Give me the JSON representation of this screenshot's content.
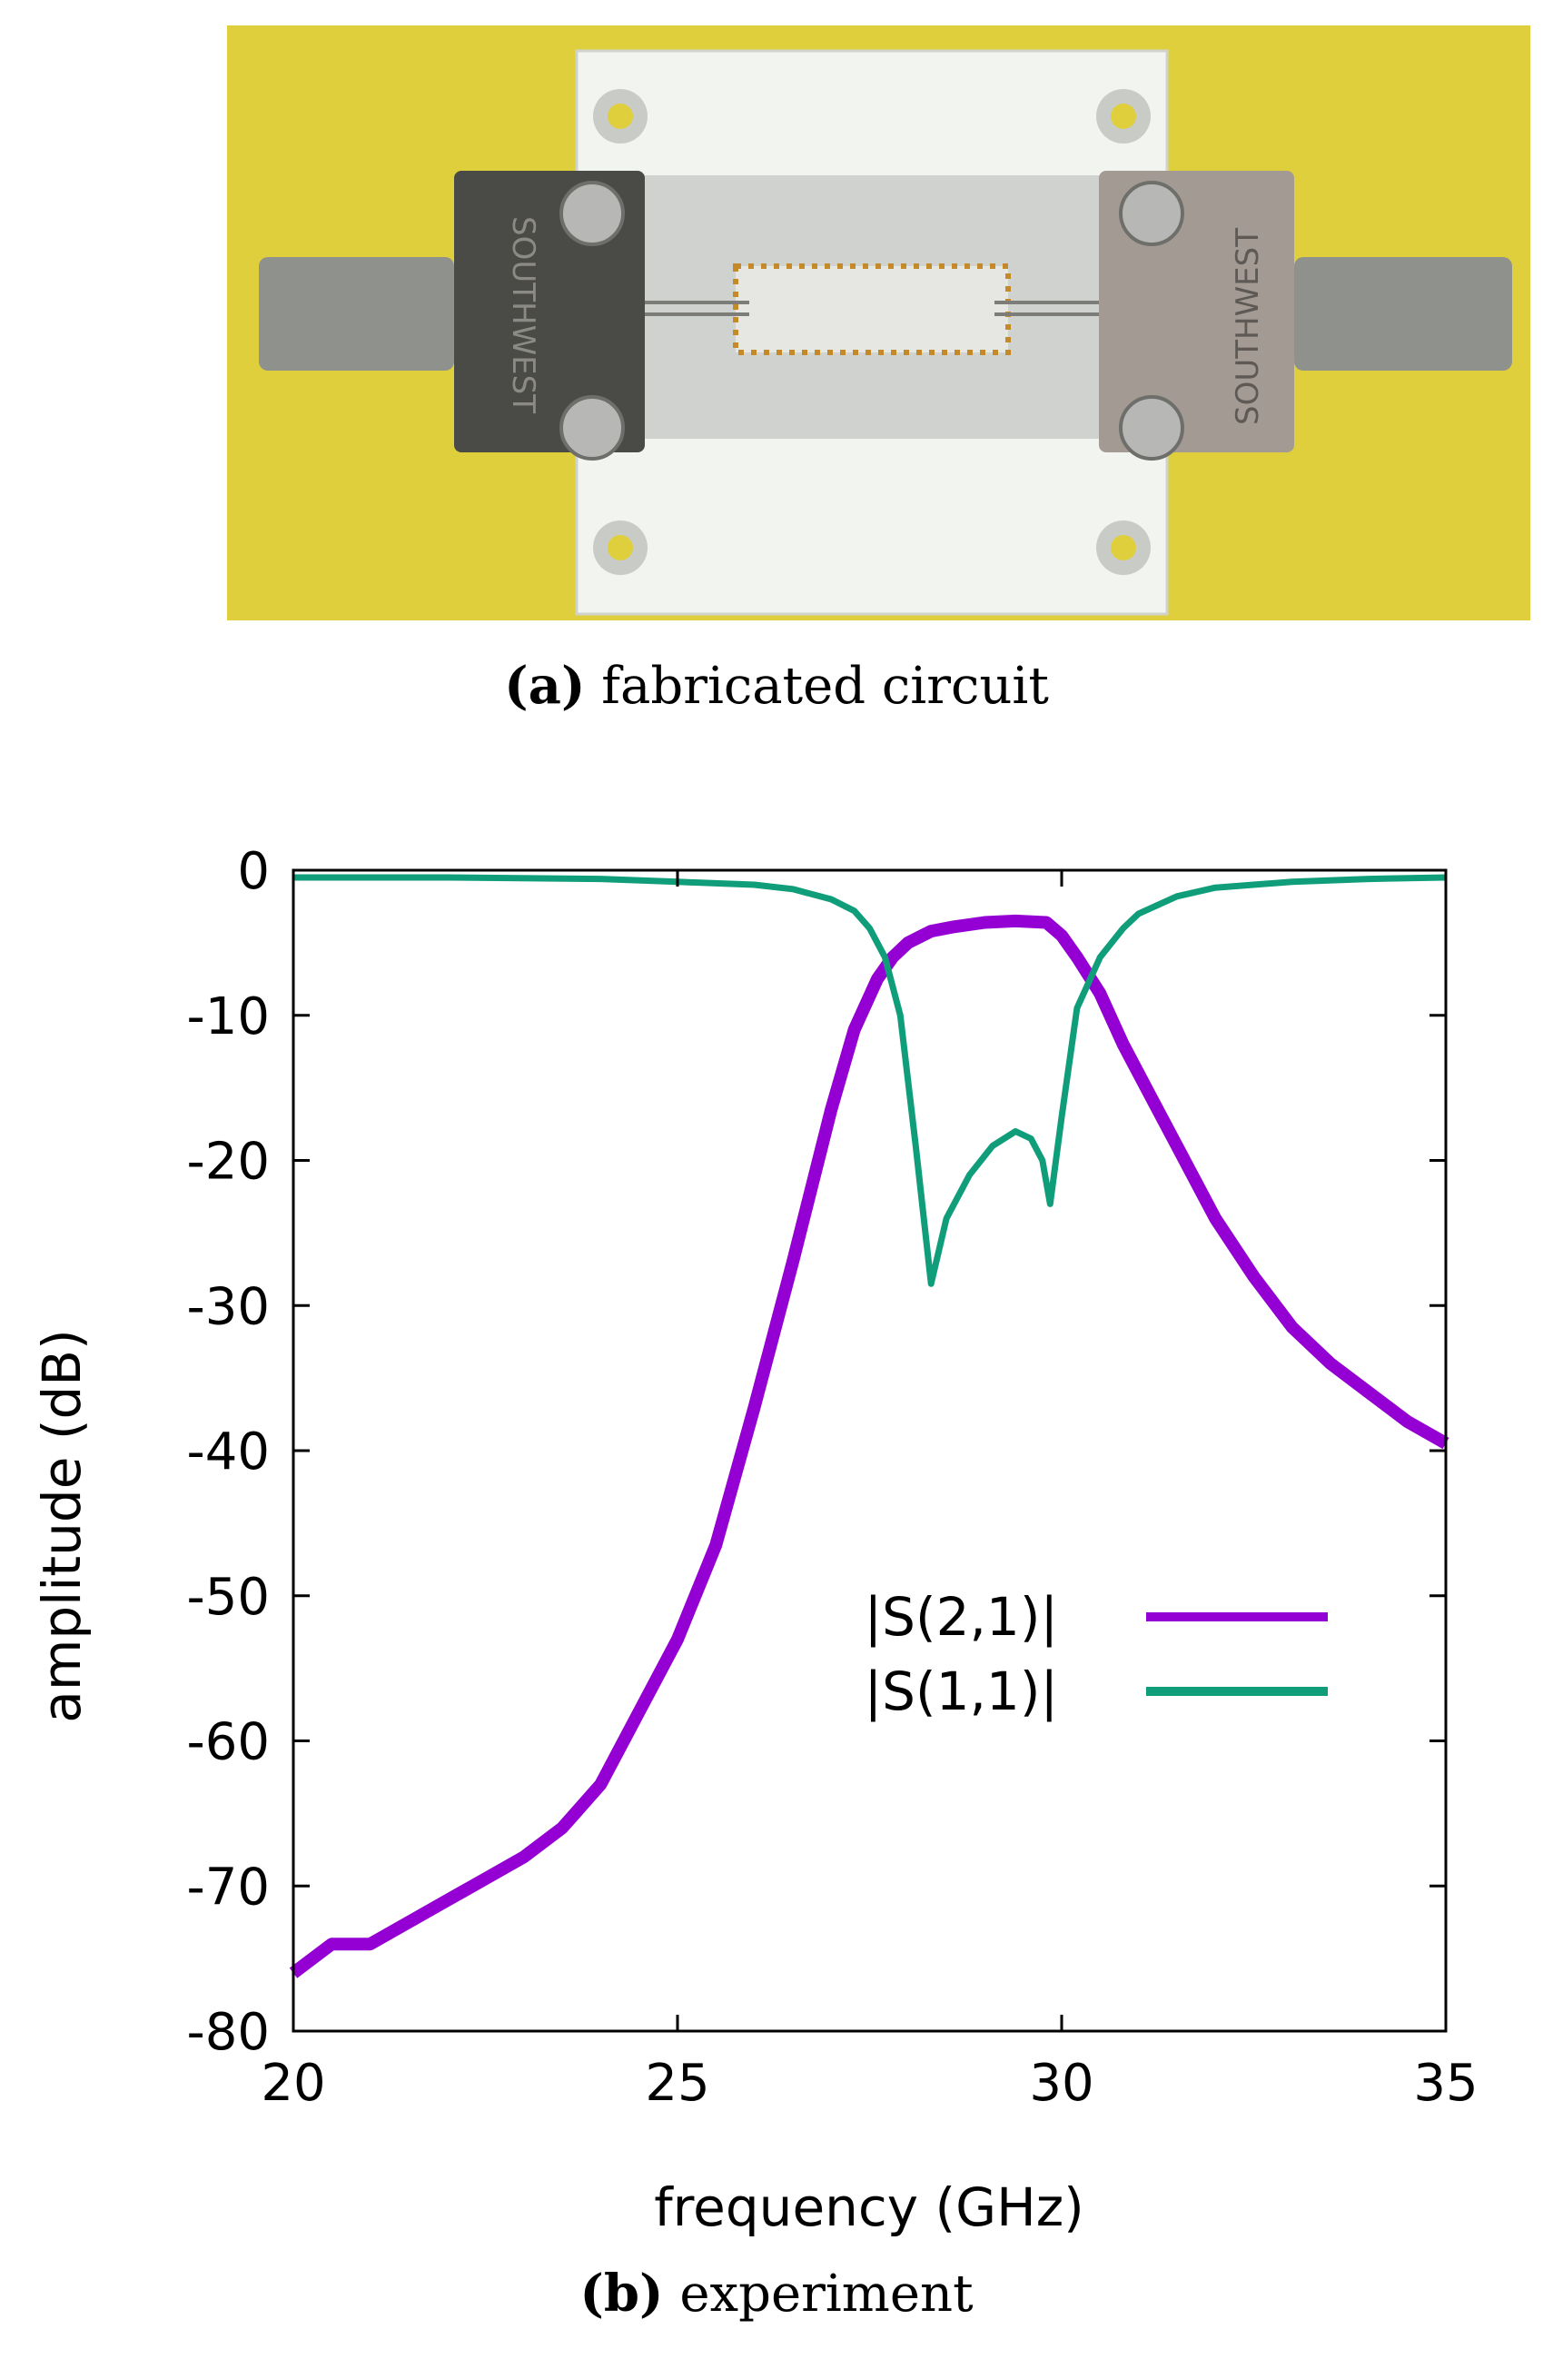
{
  "figure": {
    "panel_a": {
      "letter": "(a)",
      "caption": "fabricated circuit",
      "connector_marking": "SOUTHWEST"
    },
    "panel_b": {
      "letter": "(b)",
      "caption": "experiment"
    }
  },
  "colors": {
    "s21": "#9400d3",
    "s11": "#109e7a",
    "board_bg": "#e0cf3c"
  },
  "chart_data": {
    "type": "line",
    "xlabel": "frequency (GHz)",
    "ylabel": "amplitude (dB)",
    "xlim": [
      20,
      35
    ],
    "ylim": [
      -80,
      0
    ],
    "xticks": [
      20,
      25,
      30,
      35
    ],
    "yticks": [
      0,
      -10,
      -20,
      -30,
      -40,
      -50,
      -60,
      -70,
      -80
    ],
    "legend_position": "center-right",
    "series": [
      {
        "name": "|S(2,1)|",
        "color": "#9400d3",
        "x": [
          20,
          20.5,
          21,
          21.5,
          22,
          22.5,
          23,
          23.5,
          24,
          24.5,
          25,
          25.5,
          26,
          26.5,
          27,
          27.3,
          27.6,
          27.8,
          28,
          28.3,
          28.6,
          29,
          29.4,
          29.8,
          30,
          30.2,
          30.5,
          30.8,
          31,
          31.5,
          32,
          32.5,
          33,
          33.5,
          34,
          34.5,
          35
        ],
        "y": [
          -76,
          -74,
          -74,
          -72.5,
          -71,
          -69.5,
          -68,
          -66,
          -63,
          -58,
          -53,
          -46.5,
          -37,
          -27,
          -16.5,
          -11,
          -7.5,
          -6,
          -5,
          -4.2,
          -3.9,
          -3.6,
          -3.5,
          -3.6,
          -4.5,
          -6,
          -8.5,
          -12,
          -14,
          -19,
          -24,
          -28,
          -31.5,
          -34,
          -36,
          -38,
          -39.5
        ]
      },
      {
        "name": "|S(1,1)|",
        "color": "#109e7a",
        "x": [
          20,
          22,
          24,
          25,
          26,
          26.5,
          27,
          27.3,
          27.5,
          27.7,
          27.9,
          28.1,
          28.3,
          28.5,
          28.8,
          29.1,
          29.4,
          29.6,
          29.75,
          29.85,
          30,
          30.2,
          30.5,
          30.8,
          31,
          31.5,
          32,
          33,
          34,
          35
        ],
        "y": [
          -0.5,
          -0.5,
          -0.6,
          -0.8,
          -1,
          -1.3,
          -2,
          -2.8,
          -4,
          -6,
          -10,
          -19,
          -28.5,
          -24,
          -21,
          -19,
          -18,
          -18.5,
          -20,
          -23,
          -17,
          -9.5,
          -6,
          -4,
          -3,
          -1.8,
          -1.2,
          -0.8,
          -0.6,
          -0.5
        ]
      }
    ]
  }
}
